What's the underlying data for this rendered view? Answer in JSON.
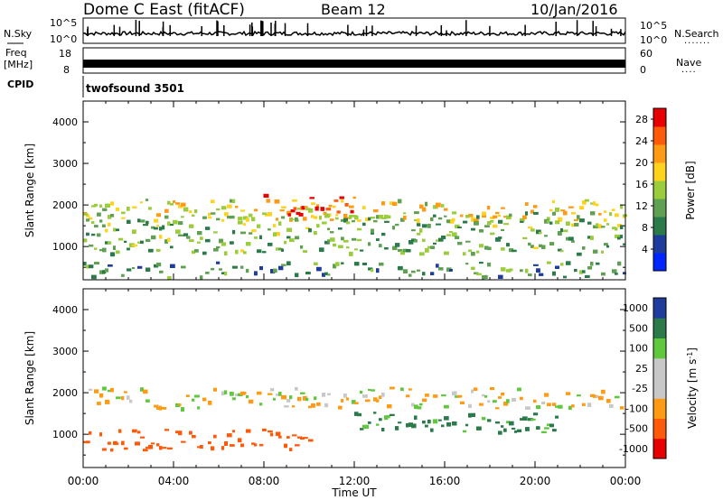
{
  "header": {
    "station": "Dome C East (fitACF)",
    "beam": "Beam 12",
    "date": "10/Jan/2016"
  },
  "panels": {
    "nsky": {
      "label": "N.Sky",
      "left_top": "10^5",
      "left_bottom": "10^0",
      "right_top": "10^5",
      "right_bottom": "10^0",
      "right_label": "N.Search"
    },
    "freq": {
      "label_line1": "Freq",
      "label_line2": "[MHz]",
      "left_top": "18",
      "left_bottom": "8",
      "right_top": "60",
      "right_bottom": "0",
      "right_label": "Nave"
    },
    "cpid": {
      "label": "CPID",
      "value": "twofsound 3501"
    }
  },
  "colors": {
    "power": [
      "#0026ff",
      "#1e3c9c",
      "#2a7a4a",
      "#5fa052",
      "#9acc3c",
      "#ffd21e",
      "#ff9a14",
      "#ff5a0a",
      "#e60000"
    ],
    "velocity": [
      "#e60000",
      "#ff5a0a",
      "#ff9a14",
      "#c8c8c8",
      "#c8c8c8",
      "#5fc83c",
      "#2a7a4a",
      "#1e3c9c"
    ]
  },
  "chart_data": [
    {
      "type": "heatmap",
      "title": "",
      "xlabel": "Time UT",
      "ylabel": "Slant Range [km]",
      "x_ticks": [
        "00:00",
        "04:00",
        "08:00",
        "12:00",
        "16:00",
        "20:00",
        "00:00"
      ],
      "x_range_hours": [
        0,
        24
      ],
      "y_ticks": [
        1000,
        2000,
        3000,
        4000
      ],
      "ylim": [
        200,
        4500
      ],
      "colorbar": {
        "label": "Power [dB]",
        "ticks": [
          4,
          8,
          12,
          16,
          20,
          24,
          28
        ],
        "range": [
          0,
          30
        ]
      },
      "echo_bands": [
        {
          "t_start": 0.0,
          "t_end": 24.0,
          "range_km": 1900,
          "value_db": 18
        },
        {
          "t_start": 7.5,
          "t_end": 12.0,
          "range_km": 2050,
          "value_db": 26
        },
        {
          "t_start": 0.0,
          "t_end": 24.0,
          "range_km": 1600,
          "value_db": 13
        },
        {
          "t_start": 0.0,
          "t_end": 24.0,
          "range_km": 1100,
          "value_db": 12
        },
        {
          "t_start": 0.0,
          "t_end": 24.0,
          "range_km": 400,
          "value_db": 10
        }
      ]
    },
    {
      "type": "heatmap",
      "title": "",
      "xlabel": "Time UT",
      "ylabel": "Slant Range [km]",
      "x_ticks": [
        "00:00",
        "04:00",
        "08:00",
        "12:00",
        "16:00",
        "20:00",
        "00:00"
      ],
      "x_range_hours": [
        0,
        24
      ],
      "y_ticks": [
        1000,
        2000,
        3000,
        4000
      ],
      "ylim": [
        200,
        4500
      ],
      "colorbar": {
        "label": "Velocity [m s^-1]",
        "ticks": [
          "1000",
          "500",
          "100",
          "25",
          "-25",
          "-100",
          "-500",
          "-1000"
        ]
      },
      "echo_bands": [
        {
          "t_start": 0.0,
          "t_end": 24.0,
          "range_km": 1900,
          "value_ms": 0
        },
        {
          "t_start": 12.0,
          "t_end": 21.0,
          "range_km": 1300,
          "value_ms": 150
        },
        {
          "t_start": 0.0,
          "t_end": 10.0,
          "range_km": 900,
          "value_ms": -200
        }
      ]
    }
  ]
}
